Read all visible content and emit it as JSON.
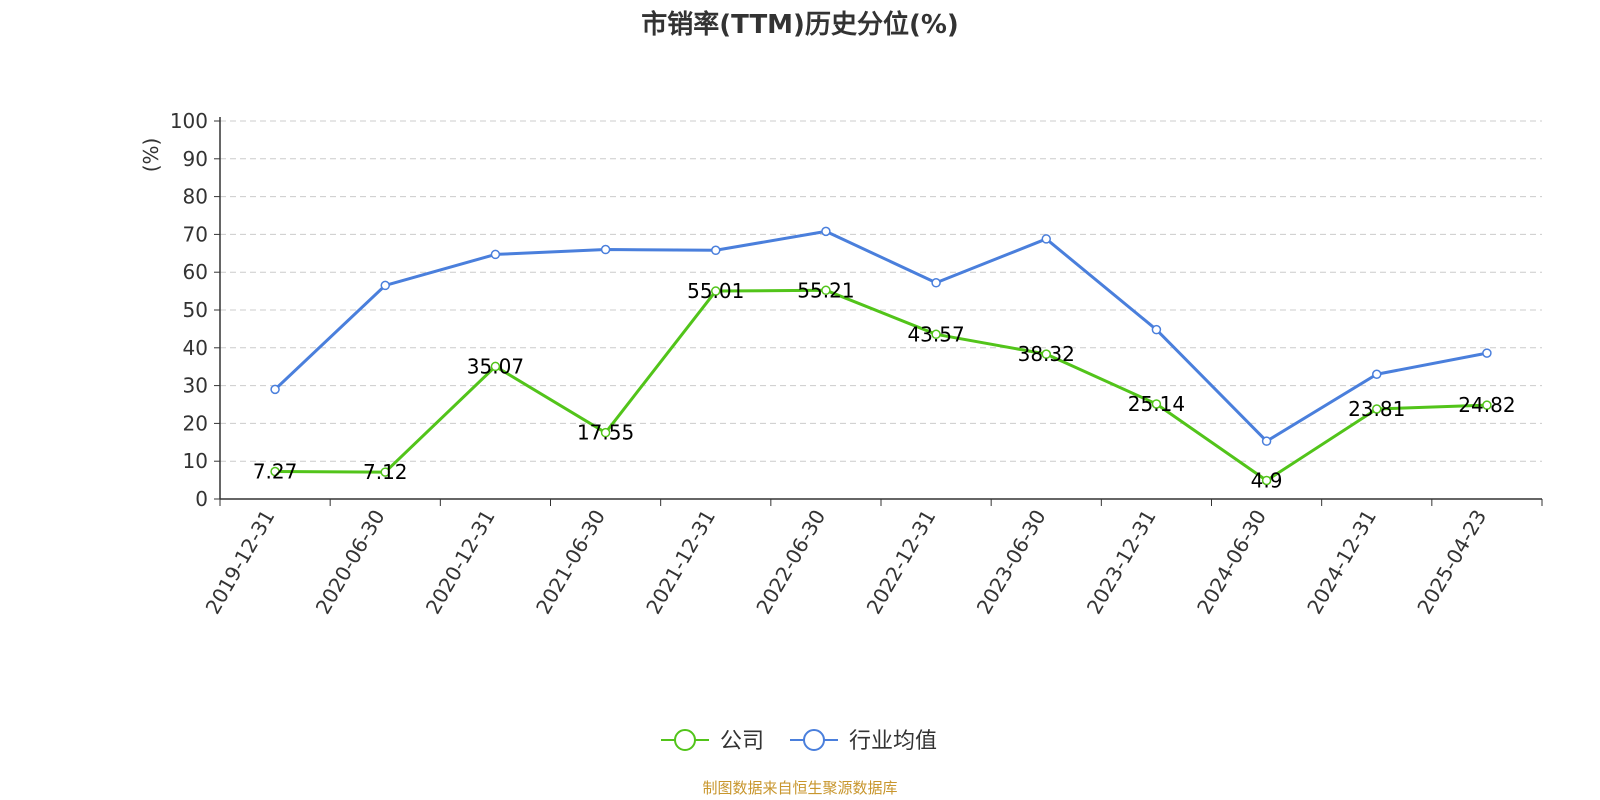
{
  "chart_data": {
    "type": "line",
    "title": "市销率(TTM)历史分位(%)",
    "ylabel": "(%)",
    "xlabel": "",
    "categories": [
      "2019-12-31",
      "2020-06-30",
      "2020-12-31",
      "2021-06-30",
      "2021-12-31",
      "2022-06-30",
      "2022-12-31",
      "2023-06-30",
      "2023-12-31",
      "2024-06-30",
      "2024-12-31",
      "2025-04-23"
    ],
    "ylim": [
      0,
      100
    ],
    "yticks": [
      0,
      10,
      20,
      30,
      40,
      50,
      60,
      70,
      80,
      90,
      100
    ],
    "grid": true,
    "legend_position": "bottom-center",
    "series": [
      {
        "name": "公司",
        "color": "#52c41a",
        "values": [
          7.27,
          7.12,
          35.07,
          17.55,
          55.01,
          55.21,
          43.57,
          38.32,
          25.14,
          4.9,
          23.81,
          24.82
        ],
        "labels": [
          "7.27",
          "7.12",
          "35.07",
          "17.55",
          "55.01",
          "55.21",
          "43.57",
          "38.32",
          "25.14",
          "4.9",
          "23.81",
          "24.82"
        ]
      },
      {
        "name": "行业均值",
        "color": "#4a7fdc",
        "values": [
          29,
          56.5,
          64.7,
          66,
          65.8,
          70.8,
          57.2,
          68.8,
          44.8,
          15.3,
          33,
          38.6
        ]
      }
    ]
  },
  "colors": {
    "axis": "#333333",
    "grid": "#cccccc",
    "ylabel": "#e00000",
    "source": "#c8962d"
  },
  "source_note": "制图数据来自恒生聚源数据库"
}
